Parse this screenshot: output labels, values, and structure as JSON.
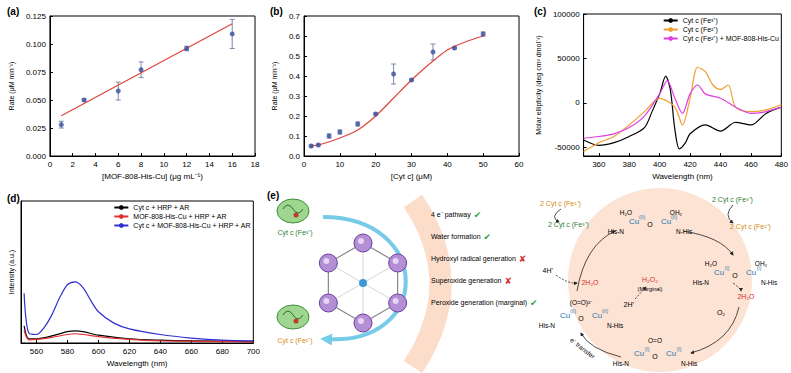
{
  "chart_data": [
    {
      "type": "scatter",
      "title": "(a)",
      "x_label": "[MOF-808-His-Cu] (μg mL⁻¹)",
      "y_label": "Rate (μM min⁻¹)",
      "xlim": [
        0,
        18
      ],
      "xticks": [
        0,
        2,
        4,
        6,
        8,
        10,
        12,
        14,
        16,
        18
      ],
      "ylim": [
        0,
        0.125
      ],
      "yticks": [
        {
          "value": 0,
          "label": "0.000"
        },
        0.025,
        {
          "value": 0.05,
          "label": "0.050"
        },
        0.075,
        {
          "value": 0.1,
          "label": "0.100"
        },
        0.125
      ],
      "grid": false,
      "series": [
        {
          "type": "scatter",
          "color": "#3b4fa0",
          "marker": "circle",
          "x": [
            1,
            3,
            6,
            8,
            12,
            16
          ],
          "values": [
            0.028,
            0.05,
            0.058,
            0.077,
            0.096,
            0.109
          ],
          "errors": [
            0.003,
            0.001,
            0.008,
            0.007,
            0.002,
            0.013
          ]
        },
        {
          "type": "line",
          "color": "#e0443c",
          "line_style": "solid",
          "x": [
            1,
            16
          ],
          "values": [
            0.036,
            0.118
          ]
        }
      ]
    },
    {
      "type": "scatter",
      "title": "(b)",
      "x_label": "[Cyt c] (μM)",
      "y_label": "Rate (μM min⁻¹)",
      "xlim": [
        0,
        60
      ],
      "xticks": [
        0,
        10,
        20,
        30,
        40,
        50,
        60
      ],
      "ylim": [
        0,
        0.7
      ],
      "yticks": [
        {
          "value": 0,
          "label": "0.0"
        },
        0.1,
        0.2,
        0.3,
        0.4,
        0.5,
        0.6,
        0.7
      ],
      "grid": false,
      "series": [
        {
          "type": "scatter",
          "color": "#3b4fa0",
          "marker": "circle",
          "x": [
            2,
            4,
            7,
            10,
            15,
            20,
            25,
            30,
            36,
            42,
            50
          ],
          "values": [
            0.05,
            0.055,
            0.1,
            0.12,
            0.16,
            0.21,
            0.41,
            0.38,
            0.52,
            0.54,
            0.61
          ],
          "errors": [
            0.005,
            0.005,
            0.01,
            0.01,
            0.01,
            0.005,
            0.05,
            0.005,
            0.04,
            0.005,
            0.01
          ]
        },
        {
          "type": "line",
          "color": "#e0443c",
          "line_style": "solid",
          "x": [
            2,
            5,
            10,
            15,
            20,
            25,
            30,
            35,
            40,
            45,
            50
          ],
          "values": [
            0.05,
            0.06,
            0.09,
            0.13,
            0.2,
            0.29,
            0.38,
            0.46,
            0.53,
            0.57,
            0.6
          ]
        }
      ]
    },
    {
      "type": "line",
      "title": "(c)",
      "x_label": "Wavelength (nm)",
      "y_label": "Molar ellipticity (deg cm² dmol⁻¹)",
      "xlim": [
        350,
        480
      ],
      "xticks": [
        360,
        380,
        400,
        420,
        440,
        460,
        480
      ],
      "ylim": [
        -60000,
        100000
      ],
      "yticks": [
        -50000,
        0,
        50000,
        100000
      ],
      "grid": false,
      "legend": "upper right",
      "series": [
        {
          "name": "Cyt c (Fe³⁺)",
          "color": "#000000",
          "line_style": "solid",
          "x": [
            350,
            360,
            370,
            380,
            390,
            395,
            400,
            404,
            407,
            410,
            413,
            417,
            420,
            430,
            440,
            450,
            460,
            470,
            480
          ],
          "values": [
            -42000,
            -48000,
            -45000,
            -38000,
            -28000,
            -10000,
            10000,
            30000,
            15000,
            -30000,
            -52000,
            -45000,
            -35000,
            -25000,
            -32000,
            -22000,
            -25000,
            -12000,
            -5000
          ]
        },
        {
          "name": "Cyt c (Fe²⁺)",
          "color": "#f0a030",
          "line_style": "solid",
          "x": [
            350,
            360,
            370,
            380,
            390,
            400,
            410,
            415,
            420,
            425,
            430,
            435,
            440,
            445,
            450,
            460,
            470,
            480
          ],
          "values": [
            -55000,
            -45000,
            -38000,
            -25000,
            -10000,
            5000,
            -5000,
            -25000,
            5000,
            40000,
            35000,
            20000,
            15000,
            20000,
            -5000,
            -10000,
            -8000,
            -2000
          ]
        },
        {
          "name": "Cyt c (Fe²⁺) + MOF-808-His-Cu",
          "color": "#e040e0",
          "line_style": "solid",
          "x": [
            350,
            360,
            370,
            380,
            390,
            400,
            405,
            410,
            415,
            420,
            425,
            430,
            440,
            450,
            460,
            470,
            480
          ],
          "values": [
            -40000,
            -38000,
            -35000,
            -28000,
            -15000,
            10000,
            25000,
            5000,
            -12000,
            10000,
            20000,
            10000,
            5000,
            -5000,
            -12000,
            -10000,
            -5000
          ]
        }
      ]
    },
    {
      "type": "line",
      "title": "(d)",
      "x_label": "Wavelength (nm)",
      "y_label": "Intensity (a.u.)",
      "xlim": [
        550,
        700
      ],
      "xticks": [
        560,
        580,
        600,
        620,
        640,
        660,
        680,
        700
      ],
      "ylim": [
        0,
        1000
      ],
      "tick_labels": "x",
      "grid": false,
      "legend": "upper right",
      "series": [
        {
          "name": "Cyt c + HRP + AR",
          "color": "#000000",
          "line_style": "solid",
          "x": [
            552,
            555,
            560,
            570,
            580,
            585,
            590,
            600,
            620,
            640,
            660,
            700
          ],
          "values": [
            120,
            30,
            30,
            50,
            80,
            85,
            80,
            55,
            30,
            20,
            15,
            10
          ]
        },
        {
          "name": "MOF-808-His-Cu + HRP + AR",
          "color": "#e03030",
          "line_style": "solid",
          "x": [
            552,
            555,
            560,
            570,
            580,
            585,
            590,
            600,
            620,
            640,
            700
          ],
          "values": [
            90,
            22,
            25,
            40,
            60,
            65,
            60,
            45,
            25,
            15,
            8
          ]
        },
        {
          "name": "Cyt c + MOF-808-His-Cu + HRP + AR",
          "color": "#3030d0",
          "line_style": "solid",
          "x": [
            552,
            555,
            560,
            565,
            570,
            575,
            580,
            585,
            590,
            595,
            600,
            610,
            620,
            640,
            660,
            680,
            700
          ],
          "values": [
            350,
            70,
            60,
            110,
            200,
            320,
            410,
            430,
            390,
            300,
            220,
            140,
            100,
            60,
            35,
            20,
            15
          ]
        }
      ]
    }
  ],
  "diagram": {
    "label": "(e)",
    "proteins": {
      "oxidized": "Cyt c (Fe³⁺)",
      "reduced": "Cyt c (Fe²⁺)"
    },
    "checklist": [
      {
        "text": "4 e⁻ pathway",
        "ok": true
      },
      {
        "text": "Water formation",
        "ok": true
      },
      {
        "text": "Hydroxyl radical generation",
        "ok": false
      },
      {
        "text": "Superoxide generation",
        "ok": false
      },
      {
        "text": "Peroxide generation (marginal)",
        "ok": true
      }
    ],
    "marks": {
      "yes": "✔",
      "no": "✘"
    },
    "complex": {
      "metal": "Cu",
      "oxidized": "(II)",
      "reduced": "(I)",
      "bridge": "O",
      "ligand_left": "His-N",
      "ligand_right": "N-His",
      "water_left": "H₂O",
      "water_right": "OH₂",
      "peroxo": "(O=O)²⁻",
      "dioxygen": "O=O"
    },
    "cycle": {
      "reductant_left": "2 Cyt c (Fe²⁺)",
      "oxidant_left": "2 Cyt c (Fe³⁺)",
      "oxidant_right": "2 Cyt c (Fe³⁺)",
      "reductant_right": "2 Cyt c (Fe²⁺)",
      "protons_4": "4H⁺",
      "water_left": "2H₂O",
      "peroxide": "H₂O₂",
      "peroxide_note": "(Marginal)",
      "protons_2": "2H⁺",
      "water_right": "2H₂O",
      "oxygen": "O₂",
      "transfer": "e⁻ transfer"
    }
  }
}
